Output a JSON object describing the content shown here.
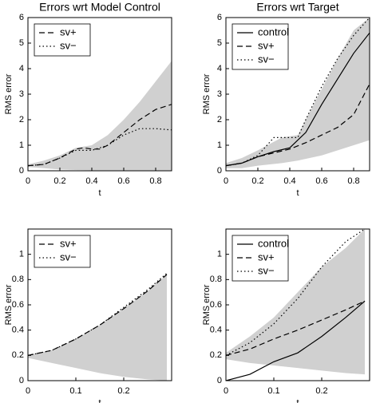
{
  "chart_data": [
    {
      "type": "line",
      "title": "Errors wrt Model Control",
      "xlabel": "t",
      "ylabel": "RMS error",
      "xlim": [
        0,
        0.9
      ],
      "xticks": [
        0,
        0.2,
        0.4,
        0.6,
        0.8
      ],
      "ylim": [
        0,
        6
      ],
      "yticks": [
        0,
        1,
        2,
        3,
        4,
        5,
        6
      ],
      "legend": "upper-left",
      "band": {
        "color": "#d0d0d0",
        "x": [
          0,
          0.1,
          0.2,
          0.3,
          0.4,
          0.5,
          0.6,
          0.7,
          0.8,
          0.9
        ],
        "lower": [
          0.15,
          0.1,
          0.05,
          0.03,
          0.02,
          0.02,
          0.02,
          0.02,
          0.02,
          0.02
        ],
        "upper": [
          0.25,
          0.4,
          0.6,
          0.9,
          1.0,
          1.4,
          2.0,
          2.7,
          3.5,
          4.3
        ]
      },
      "series": [
        {
          "name": "sv+",
          "color": "#000000",
          "dash": "dashed",
          "x": [
            0,
            0.1,
            0.2,
            0.3,
            0.35,
            0.4,
            0.45,
            0.5,
            0.6,
            0.7,
            0.8,
            0.9
          ],
          "values": [
            0.2,
            0.25,
            0.5,
            0.85,
            0.9,
            0.85,
            0.85,
            1.0,
            1.5,
            2.0,
            2.4,
            2.6
          ]
        },
        {
          "name": "sv−",
          "color": "#000000",
          "dash": "dotted",
          "x": [
            0,
            0.1,
            0.2,
            0.3,
            0.4,
            0.5,
            0.6,
            0.7,
            0.8,
            0.9
          ],
          "values": [
            0.2,
            0.25,
            0.5,
            0.8,
            0.8,
            1.0,
            1.4,
            1.65,
            1.65,
            1.6
          ]
        }
      ]
    },
    {
      "type": "line",
      "title": "Errors wrt Target",
      "xlabel": "t",
      "ylabel": "RMS error",
      "xlim": [
        0,
        0.9
      ],
      "xticks": [
        0,
        0.2,
        0.4,
        0.6,
        0.8
      ],
      "ylim": [
        0,
        6
      ],
      "yticks": [
        0,
        1,
        2,
        3,
        4,
        5,
        6
      ],
      "legend": "upper-left",
      "band": {
        "color": "#d0d0d0",
        "x": [
          0,
          0.1,
          0.2,
          0.35,
          0.45,
          0.6,
          0.7,
          0.8,
          0.9
        ],
        "lower": [
          0.1,
          0.1,
          0.2,
          0.3,
          0.4,
          0.6,
          0.8,
          1.0,
          1.2
        ],
        "upper": [
          0.3,
          0.5,
          0.8,
          1.3,
          1.4,
          3.2,
          4.4,
          5.5,
          6
        ]
      },
      "series": [
        {
          "name": "control",
          "color": "#000000",
          "dash": "solid",
          "x": [
            0,
            0.1,
            0.2,
            0.3,
            0.4,
            0.5,
            0.6,
            0.7,
            0.8,
            0.9
          ],
          "values": [
            0.2,
            0.3,
            0.55,
            0.75,
            0.9,
            1.5,
            2.6,
            3.6,
            4.6,
            5.4
          ]
        },
        {
          "name": "sv+",
          "color": "#000000",
          "dash": "dashed",
          "x": [
            0,
            0.1,
            0.2,
            0.3,
            0.4,
            0.5,
            0.6,
            0.7,
            0.8,
            0.9
          ],
          "values": [
            0.2,
            0.3,
            0.55,
            0.7,
            0.85,
            1.1,
            1.4,
            1.7,
            2.2,
            3.4
          ]
        },
        {
          "name": "sv−",
          "color": "#000000",
          "dash": "dotted",
          "x": [
            0,
            0.1,
            0.2,
            0.3,
            0.4,
            0.45,
            0.5,
            0.6,
            0.7,
            0.8,
            0.9
          ],
          "values": [
            0.2,
            0.3,
            0.6,
            1.3,
            1.3,
            1.3,
            2.0,
            3.3,
            4.4,
            5.3,
            6
          ]
        }
      ]
    },
    {
      "type": "line",
      "xlabel": "t",
      "ylabel": "RMS error",
      "xlim": [
        0,
        0.3
      ],
      "xticks": [
        0,
        0.1,
        0.2
      ],
      "ylim": [
        0,
        1.2
      ],
      "yticks": [
        0,
        0.2,
        0.4,
        0.6,
        0.8,
        1
      ],
      "legend": "upper-left",
      "band": {
        "color": "#d0d0d0",
        "x": [
          0,
          0.05,
          0.1,
          0.15,
          0.2,
          0.25,
          0.29
        ],
        "lower": [
          0.18,
          0.14,
          0.1,
          0.06,
          0.03,
          0.01,
          0
        ],
        "upper": [
          0.2,
          0.24,
          0.33,
          0.44,
          0.57,
          0.71,
          0.84
        ]
      },
      "series": [
        {
          "name": "sv+",
          "color": "#000000",
          "dash": "dashed",
          "x": [
            0,
            0.05,
            0.1,
            0.15,
            0.2,
            0.25,
            0.29
          ],
          "values": [
            0.2,
            0.24,
            0.33,
            0.44,
            0.57,
            0.71,
            0.84
          ]
        },
        {
          "name": "sv−",
          "color": "#000000",
          "dash": "dotted",
          "x": [
            0,
            0.05,
            0.1,
            0.15,
            0.2,
            0.25,
            0.29
          ],
          "values": [
            0.2,
            0.24,
            0.33,
            0.44,
            0.58,
            0.72,
            0.85
          ]
        }
      ]
    },
    {
      "type": "line",
      "xlabel": "t",
      "ylabel": "RMS error",
      "xlim": [
        0,
        0.3
      ],
      "xticks": [
        0,
        0.1,
        0.2
      ],
      "ylim": [
        0,
        1.2
      ],
      "yticks": [
        0,
        0.2,
        0.4,
        0.6,
        0.8,
        1
      ],
      "legend": "upper-left",
      "band": {
        "color": "#d0d0d0",
        "x": [
          0,
          0.05,
          0.1,
          0.15,
          0.2,
          0.25,
          0.29
        ],
        "lower": [
          0.17,
          0.14,
          0.12,
          0.1,
          0.08,
          0.06,
          0.05
        ],
        "upper": [
          0.22,
          0.35,
          0.5,
          0.7,
          0.9,
          1.05,
          1.2
        ]
      },
      "series": [
        {
          "name": "control",
          "color": "#000000",
          "dash": "solid",
          "x": [
            0,
            0.05,
            0.1,
            0.15,
            0.2,
            0.25,
            0.29
          ],
          "values": [
            0,
            0.05,
            0.15,
            0.22,
            0.35,
            0.5,
            0.63
          ]
        },
        {
          "name": "sv+",
          "color": "#000000",
          "dash": "dashed",
          "x": [
            0,
            0.05,
            0.1,
            0.15,
            0.2,
            0.25,
            0.29
          ],
          "values": [
            0.2,
            0.25,
            0.33,
            0.4,
            0.48,
            0.56,
            0.63
          ]
        },
        {
          "name": "sv−",
          "color": "#000000",
          "dash": "dotted",
          "x": [
            0,
            0.05,
            0.1,
            0.15,
            0.2,
            0.25,
            0.29
          ],
          "values": [
            0.2,
            0.3,
            0.45,
            0.65,
            0.9,
            1.1,
            1.2
          ]
        }
      ]
    }
  ]
}
